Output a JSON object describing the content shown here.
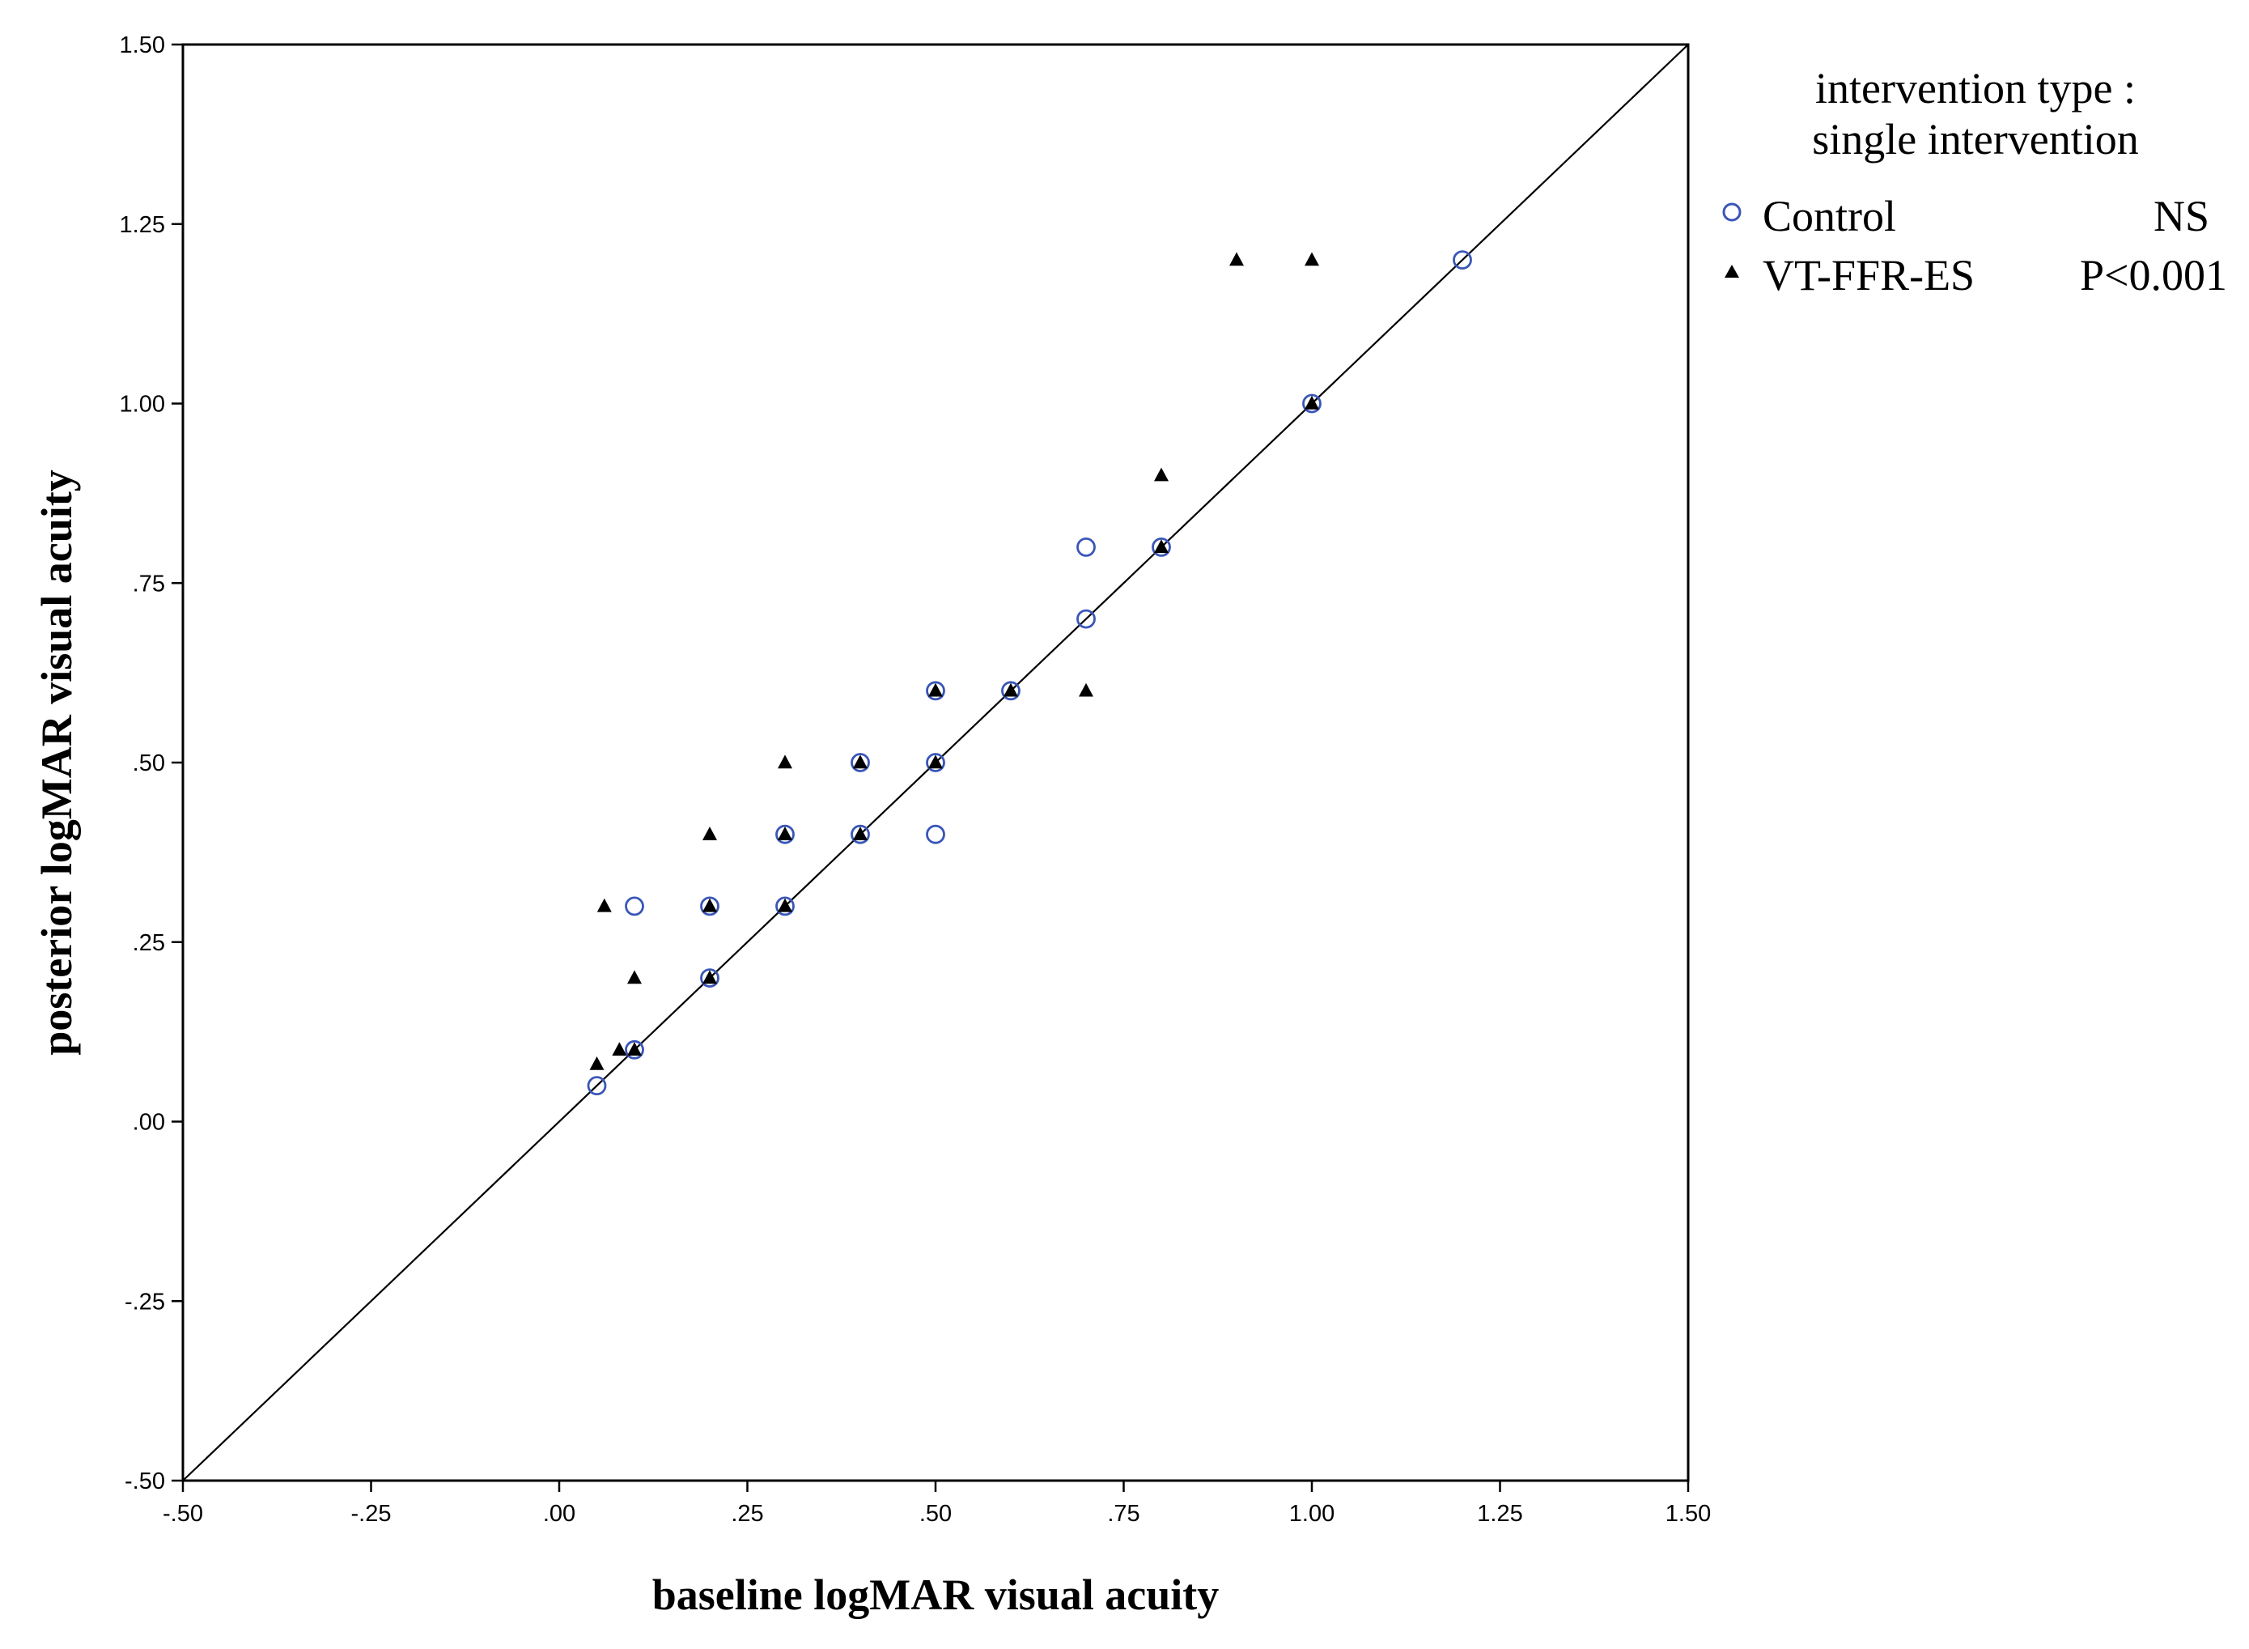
{
  "chart_data": {
    "type": "scatter",
    "title": "",
    "xlabel": "baseline logMAR visual acuity",
    "ylabel": "posterior logMAR visual acuity",
    "xlim": [
      -0.5,
      1.5
    ],
    "ylim": [
      -0.5,
      1.5
    ],
    "x_ticks": [
      -0.5,
      -0.25,
      0,
      0.25,
      0.5,
      0.75,
      1.0,
      1.25,
      1.5
    ],
    "y_ticks": [
      -0.5,
      -0.25,
      0,
      0.25,
      0.5,
      0.75,
      1.0,
      1.25,
      1.5
    ],
    "x_tick_labels": [
      "-.50",
      "-.25",
      ".00",
      ".25",
      ".50",
      ".75",
      "1.00",
      "1.25",
      "1.50"
    ],
    "y_tick_labels": [
      "-.50",
      "-.25",
      ".00",
      ".25",
      ".50",
      ".75",
      "1.00",
      "1.25",
      "1.50"
    ],
    "grid": false,
    "reference_line": {
      "type": "identity",
      "from": [
        -0.5,
        -0.5
      ],
      "to": [
        1.5,
        1.5
      ]
    },
    "legend": {
      "title_lines": [
        "intervention type :",
        "single intervention"
      ],
      "placement": "right",
      "entries": [
        {
          "label": "Control",
          "stat": "NS"
        },
        {
          "label": "VT-FFR-ES",
          "stat": "P<0.001"
        }
      ]
    },
    "series": [
      {
        "name": "Control",
        "marker": "open-circle",
        "color": "#3a56b8",
        "points": [
          [
            0.05,
            0.05
          ],
          [
            0.1,
            0.1
          ],
          [
            0.1,
            0.3
          ],
          [
            0.2,
            0.2
          ],
          [
            0.2,
            0.3
          ],
          [
            0.3,
            0.3
          ],
          [
            0.3,
            0.4
          ],
          [
            0.4,
            0.4
          ],
          [
            0.4,
            0.5
          ],
          [
            0.5,
            0.4
          ],
          [
            0.5,
            0.5
          ],
          [
            0.5,
            0.6
          ],
          [
            0.6,
            0.6
          ],
          [
            0.7,
            0.7
          ],
          [
            0.7,
            0.8
          ],
          [
            0.8,
            0.8
          ],
          [
            1.0,
            1.0
          ],
          [
            1.2,
            1.2
          ]
        ]
      },
      {
        "name": "VT-FFR-ES",
        "marker": "filled-triangle",
        "color": "#000000",
        "points": [
          [
            0.05,
            0.08
          ],
          [
            0.06,
            0.3
          ],
          [
            0.08,
            0.1
          ],
          [
            0.1,
            0.1
          ],
          [
            0.1,
            0.2
          ],
          [
            0.2,
            0.2
          ],
          [
            0.2,
            0.3
          ],
          [
            0.2,
            0.4
          ],
          [
            0.3,
            0.3
          ],
          [
            0.3,
            0.4
          ],
          [
            0.3,
            0.5
          ],
          [
            0.4,
            0.4
          ],
          [
            0.4,
            0.5
          ],
          [
            0.5,
            0.5
          ],
          [
            0.5,
            0.6
          ],
          [
            0.6,
            0.6
          ],
          [
            0.7,
            0.6
          ],
          [
            0.8,
            0.8
          ],
          [
            0.8,
            0.9
          ],
          [
            0.9,
            1.2
          ],
          [
            1.0,
            1.0
          ],
          [
            1.0,
            1.2
          ]
        ]
      }
    ]
  }
}
